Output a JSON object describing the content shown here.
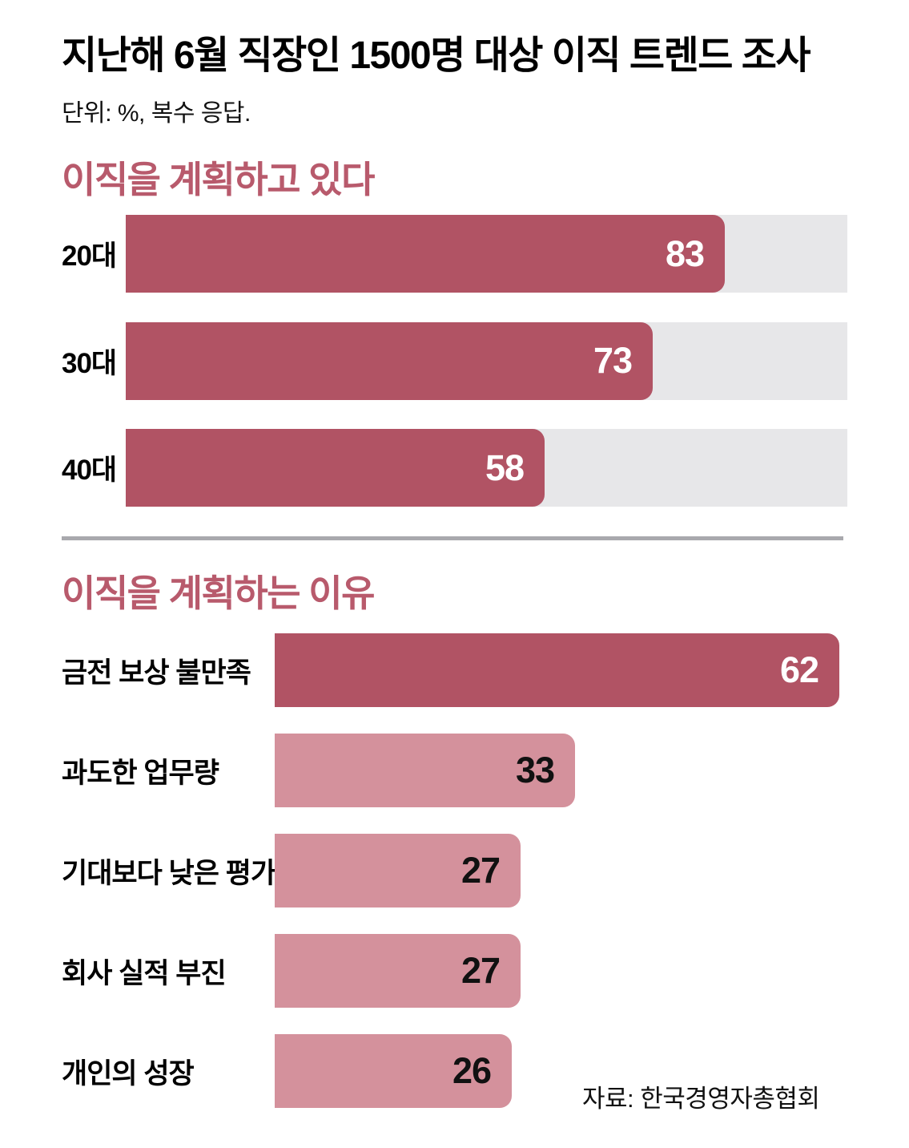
{
  "header": {
    "title": "지난해 6월 직장인 1500명 대상 이직 트렌드 조사",
    "subtitle": "단위: %, 복수 응답."
  },
  "source": "자료: 한국경영자총협회",
  "colors": {
    "bar_dark": "#b15364",
    "bar_light": "#d4919c",
    "track": "#e7e7e9",
    "section_title": "#b85a6c",
    "divider": "#a9a9ad",
    "value_on_dark": "#ffffff",
    "value_on_light": "#111111"
  },
  "chart_data": [
    {
      "type": "bar",
      "orientation": "horizontal",
      "title": "이직을 계획하고 있다",
      "categories": [
        "20대",
        "30대",
        "40대"
      ],
      "values": [
        83,
        73,
        58
      ],
      "xlim": [
        0,
        100
      ],
      "track": true,
      "bar_style": [
        "dark",
        "dark",
        "dark"
      ],
      "value_label_position": "inside-right",
      "grid": false,
      "legend": false
    },
    {
      "type": "bar",
      "orientation": "horizontal",
      "title": "이직을 계획하는 이유",
      "categories": [
        "금전 보상 불만족",
        "과도한 업무량",
        "기대보다 낮은 평가",
        "회사 실적 부진",
        "개인의 성장"
      ],
      "values": [
        62,
        33,
        27,
        27,
        26
      ],
      "xlim": [
        0,
        62
      ],
      "track": false,
      "bar_style": [
        "dark",
        "light",
        "light",
        "light",
        "light"
      ],
      "value_label_position": "inside-right",
      "grid": false,
      "legend": false
    }
  ]
}
